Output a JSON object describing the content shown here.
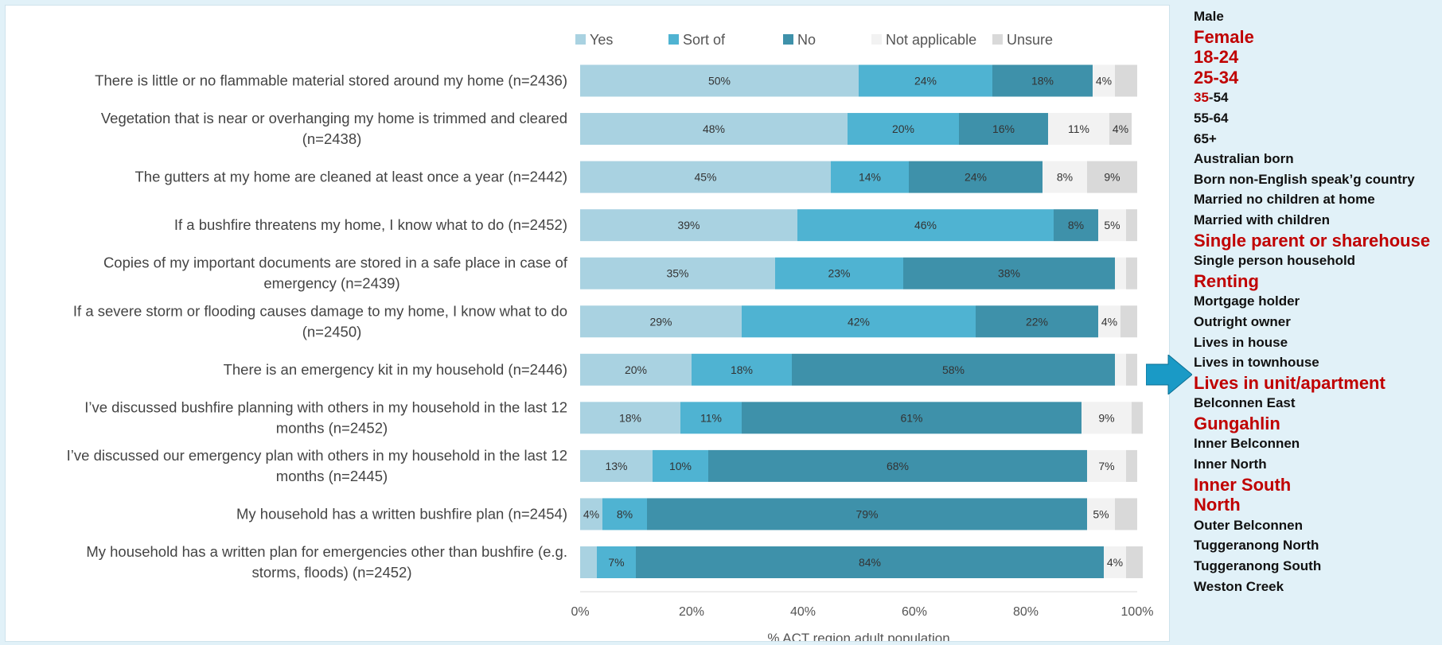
{
  "chart_data": {
    "type": "bar",
    "orientation": "horizontal",
    "stacked": true,
    "xlabel": "% ACT region adult population",
    "xlim": [
      0,
      100
    ],
    "xticks": [
      "0%",
      "20%",
      "40%",
      "60%",
      "80%",
      "100%"
    ],
    "legend_position": "top",
    "categories": [
      [
        "There is little or no flammable material stored around my home  (n=2436)"
      ],
      [
        "Vegetation that is near or overhanging my home is trimmed and cleared",
        "(n=2438)"
      ],
      [
        "The gutters at my home are cleaned at least once a year (n=2442)"
      ],
      [
        "If a bushfire threatens my home, I know what to do  (n=2452)"
      ],
      [
        "Copies of my important documents are stored in a safe place in case of",
        "emergency (n=2439)"
      ],
      [
        "If a severe storm or flooding causes damage to my home, I know what to do",
        "(n=2450)"
      ],
      [
        "There is an emergency kit in my household  (n=2446)"
      ],
      [
        "I’ve discussed bushfire planning with others in my household in the last 12",
        "months (n=2452)"
      ],
      [
        "I’ve discussed our emergency plan with others in my household in the last 12",
        "months (n=2445)"
      ],
      [
        "My household has a written bushfire plan (n=2454)"
      ],
      [
        "My household has a written plan for emergencies other than bushfire (e.g.",
        "storms, floods) (n=2452)"
      ]
    ],
    "series": [
      {
        "name": "Yes",
        "color": "#a9d2e1",
        "values": [
          50,
          48,
          45,
          39,
          35,
          29,
          20,
          18,
          13,
          4,
          3
        ],
        "labels": [
          "50%",
          "48%",
          "45%",
          "39%",
          "35%",
          "29%",
          "20%",
          "18%",
          "13%",
          "4%",
          ""
        ]
      },
      {
        "name": "Sort of",
        "color": "#4fb3d2",
        "values": [
          24,
          20,
          14,
          46,
          23,
          42,
          18,
          11,
          10,
          8,
          7
        ],
        "labels": [
          "24%",
          "20%",
          "14%",
          "46%",
          "23%",
          "42%",
          "18%",
          "11%",
          "10%",
          "8%",
          "7%"
        ]
      },
      {
        "name": "No",
        "color": "#3e91aa",
        "values": [
          18,
          16,
          24,
          8,
          38,
          22,
          58,
          61,
          68,
          79,
          84
        ],
        "labels": [
          "18%",
          "16%",
          "24%",
          "8%",
          "38%",
          "22%",
          "58%",
          "61%",
          "68%",
          "79%",
          "84%"
        ]
      },
      {
        "name": "Not applicable",
        "color": "#f2f2f2",
        "values": [
          4,
          11,
          8,
          5,
          2,
          4,
          2,
          9,
          7,
          5,
          4
        ],
        "labels": [
          "4%",
          "11%",
          "8%",
          "5%",
          "",
          "4%",
          "",
          "9%",
          "7%",
          "5%",
          "4%"
        ]
      },
      {
        "name": "Unsure",
        "color": "#d9d9d9",
        "values": [
          4,
          4,
          9,
          2,
          2,
          3,
          2,
          2,
          2,
          4,
          3
        ],
        "labels": [
          "",
          "4%",
          "9%",
          "",
          "",
          "",
          "",
          "",
          "",
          "",
          ""
        ]
      }
    ]
  },
  "side_panel": {
    "arrow_color": "#1a9ac6",
    "items": [
      {
        "text": "Male",
        "style": "normal"
      },
      {
        "text": "Female",
        "style": "big"
      },
      {
        "text": "18-24",
        "style": "big"
      },
      {
        "text": "25-34",
        "style": "big"
      },
      {
        "text": "-54",
        "style": "normal",
        "highlight_prefix": "35"
      },
      {
        "text": "55-64",
        "style": "normal"
      },
      {
        "text": "65+",
        "style": "normal"
      },
      {
        "text": "Australian born",
        "style": "normal"
      },
      {
        "text": "Born non-English speak’g country",
        "style": "normal"
      },
      {
        "text": "Married no children at home",
        "style": "normal"
      },
      {
        "text": "Married with children",
        "style": "normal"
      },
      {
        "text": "Single parent or sharehouse",
        "style": "big"
      },
      {
        "text": "Single person household",
        "style": "normal"
      },
      {
        "text": "Renting",
        "style": "big"
      },
      {
        "text": "Mortgage holder",
        "style": "normal"
      },
      {
        "text": "Outright owner",
        "style": "normal"
      },
      {
        "text": "Lives in house",
        "style": "normal"
      },
      {
        "text": "Lives in townhouse",
        "style": "normal"
      },
      {
        "text": "Lives in unit/apartment",
        "style": "big"
      },
      {
        "text": "Belconnen East",
        "style": "normal"
      },
      {
        "text": "Gungahlin",
        "style": "big"
      },
      {
        "text": "Inner Belconnen",
        "style": "normal"
      },
      {
        "text": "Inner North",
        "style": "normal"
      },
      {
        "text": "Inner South",
        "style": "big"
      },
      {
        "text": "North",
        "style": "big"
      },
      {
        "text": "Outer Belconnen",
        "style": "normal"
      },
      {
        "text": "Tuggeranong North",
        "style": "normal"
      },
      {
        "text": "Tuggeranong South",
        "style": "normal"
      },
      {
        "text": "Weston Creek",
        "style": "normal"
      }
    ]
  }
}
